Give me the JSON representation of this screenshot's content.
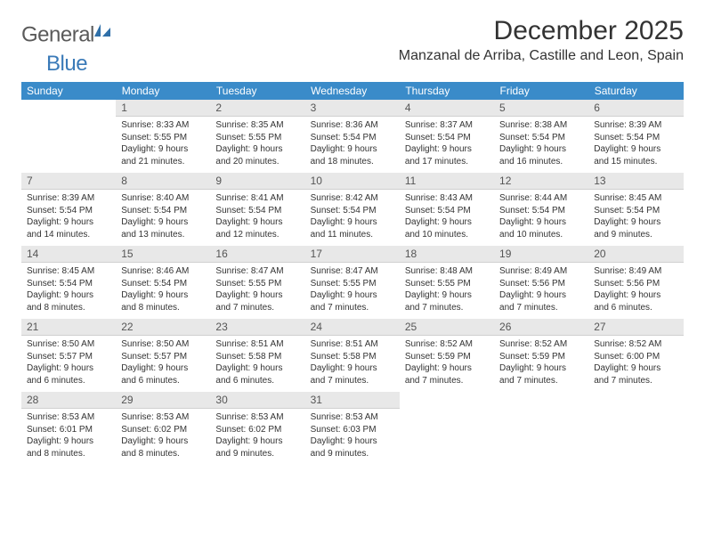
{
  "brand": {
    "part1": "General",
    "part2": "Blue"
  },
  "title": "December 2025",
  "location": "Manzanal de Arriba, Castille and Leon, Spain",
  "colors": {
    "header_bg": "#3a8bc9",
    "header_text": "#ffffff",
    "daynum_bg": "#e8e8e8",
    "daynum_text": "#555555",
    "body_text": "#333333",
    "logo_gray": "#5a5a5a",
    "logo_blue": "#3a7ab8"
  },
  "weekdays": [
    "Sunday",
    "Monday",
    "Tuesday",
    "Wednesday",
    "Thursday",
    "Friday",
    "Saturday"
  ],
  "weeks": [
    [
      null,
      {
        "n": "1",
        "sunrise": "8:33 AM",
        "sunset": "5:55 PM",
        "daylight": "9 hours and 21 minutes."
      },
      {
        "n": "2",
        "sunrise": "8:35 AM",
        "sunset": "5:55 PM",
        "daylight": "9 hours and 20 minutes."
      },
      {
        "n": "3",
        "sunrise": "8:36 AM",
        "sunset": "5:54 PM",
        "daylight": "9 hours and 18 minutes."
      },
      {
        "n": "4",
        "sunrise": "8:37 AM",
        "sunset": "5:54 PM",
        "daylight": "9 hours and 17 minutes."
      },
      {
        "n": "5",
        "sunrise": "8:38 AM",
        "sunset": "5:54 PM",
        "daylight": "9 hours and 16 minutes."
      },
      {
        "n": "6",
        "sunrise": "8:39 AM",
        "sunset": "5:54 PM",
        "daylight": "9 hours and 15 minutes."
      }
    ],
    [
      {
        "n": "7",
        "sunrise": "8:39 AM",
        "sunset": "5:54 PM",
        "daylight": "9 hours and 14 minutes."
      },
      {
        "n": "8",
        "sunrise": "8:40 AM",
        "sunset": "5:54 PM",
        "daylight": "9 hours and 13 minutes."
      },
      {
        "n": "9",
        "sunrise": "8:41 AM",
        "sunset": "5:54 PM",
        "daylight": "9 hours and 12 minutes."
      },
      {
        "n": "10",
        "sunrise": "8:42 AM",
        "sunset": "5:54 PM",
        "daylight": "9 hours and 11 minutes."
      },
      {
        "n": "11",
        "sunrise": "8:43 AM",
        "sunset": "5:54 PM",
        "daylight": "9 hours and 10 minutes."
      },
      {
        "n": "12",
        "sunrise": "8:44 AM",
        "sunset": "5:54 PM",
        "daylight": "9 hours and 10 minutes."
      },
      {
        "n": "13",
        "sunrise": "8:45 AM",
        "sunset": "5:54 PM",
        "daylight": "9 hours and 9 minutes."
      }
    ],
    [
      {
        "n": "14",
        "sunrise": "8:45 AM",
        "sunset": "5:54 PM",
        "daylight": "9 hours and 8 minutes."
      },
      {
        "n": "15",
        "sunrise": "8:46 AM",
        "sunset": "5:54 PM",
        "daylight": "9 hours and 8 minutes."
      },
      {
        "n": "16",
        "sunrise": "8:47 AM",
        "sunset": "5:55 PM",
        "daylight": "9 hours and 7 minutes."
      },
      {
        "n": "17",
        "sunrise": "8:47 AM",
        "sunset": "5:55 PM",
        "daylight": "9 hours and 7 minutes."
      },
      {
        "n": "18",
        "sunrise": "8:48 AM",
        "sunset": "5:55 PM",
        "daylight": "9 hours and 7 minutes."
      },
      {
        "n": "19",
        "sunrise": "8:49 AM",
        "sunset": "5:56 PM",
        "daylight": "9 hours and 7 minutes."
      },
      {
        "n": "20",
        "sunrise": "8:49 AM",
        "sunset": "5:56 PM",
        "daylight": "9 hours and 6 minutes."
      }
    ],
    [
      {
        "n": "21",
        "sunrise": "8:50 AM",
        "sunset": "5:57 PM",
        "daylight": "9 hours and 6 minutes."
      },
      {
        "n": "22",
        "sunrise": "8:50 AM",
        "sunset": "5:57 PM",
        "daylight": "9 hours and 6 minutes."
      },
      {
        "n": "23",
        "sunrise": "8:51 AM",
        "sunset": "5:58 PM",
        "daylight": "9 hours and 6 minutes."
      },
      {
        "n": "24",
        "sunrise": "8:51 AM",
        "sunset": "5:58 PM",
        "daylight": "9 hours and 7 minutes."
      },
      {
        "n": "25",
        "sunrise": "8:52 AM",
        "sunset": "5:59 PM",
        "daylight": "9 hours and 7 minutes."
      },
      {
        "n": "26",
        "sunrise": "8:52 AM",
        "sunset": "5:59 PM",
        "daylight": "9 hours and 7 minutes."
      },
      {
        "n": "27",
        "sunrise": "8:52 AM",
        "sunset": "6:00 PM",
        "daylight": "9 hours and 7 minutes."
      }
    ],
    [
      {
        "n": "28",
        "sunrise": "8:53 AM",
        "sunset": "6:01 PM",
        "daylight": "9 hours and 8 minutes."
      },
      {
        "n": "29",
        "sunrise": "8:53 AM",
        "sunset": "6:02 PM",
        "daylight": "9 hours and 8 minutes."
      },
      {
        "n": "30",
        "sunrise": "8:53 AM",
        "sunset": "6:02 PM",
        "daylight": "9 hours and 9 minutes."
      },
      {
        "n": "31",
        "sunrise": "8:53 AM",
        "sunset": "6:03 PM",
        "daylight": "9 hours and 9 minutes."
      },
      null,
      null,
      null
    ]
  ],
  "labels": {
    "sunrise_prefix": "Sunrise: ",
    "sunset_prefix": "Sunset: ",
    "daylight_prefix": "Daylight: "
  }
}
